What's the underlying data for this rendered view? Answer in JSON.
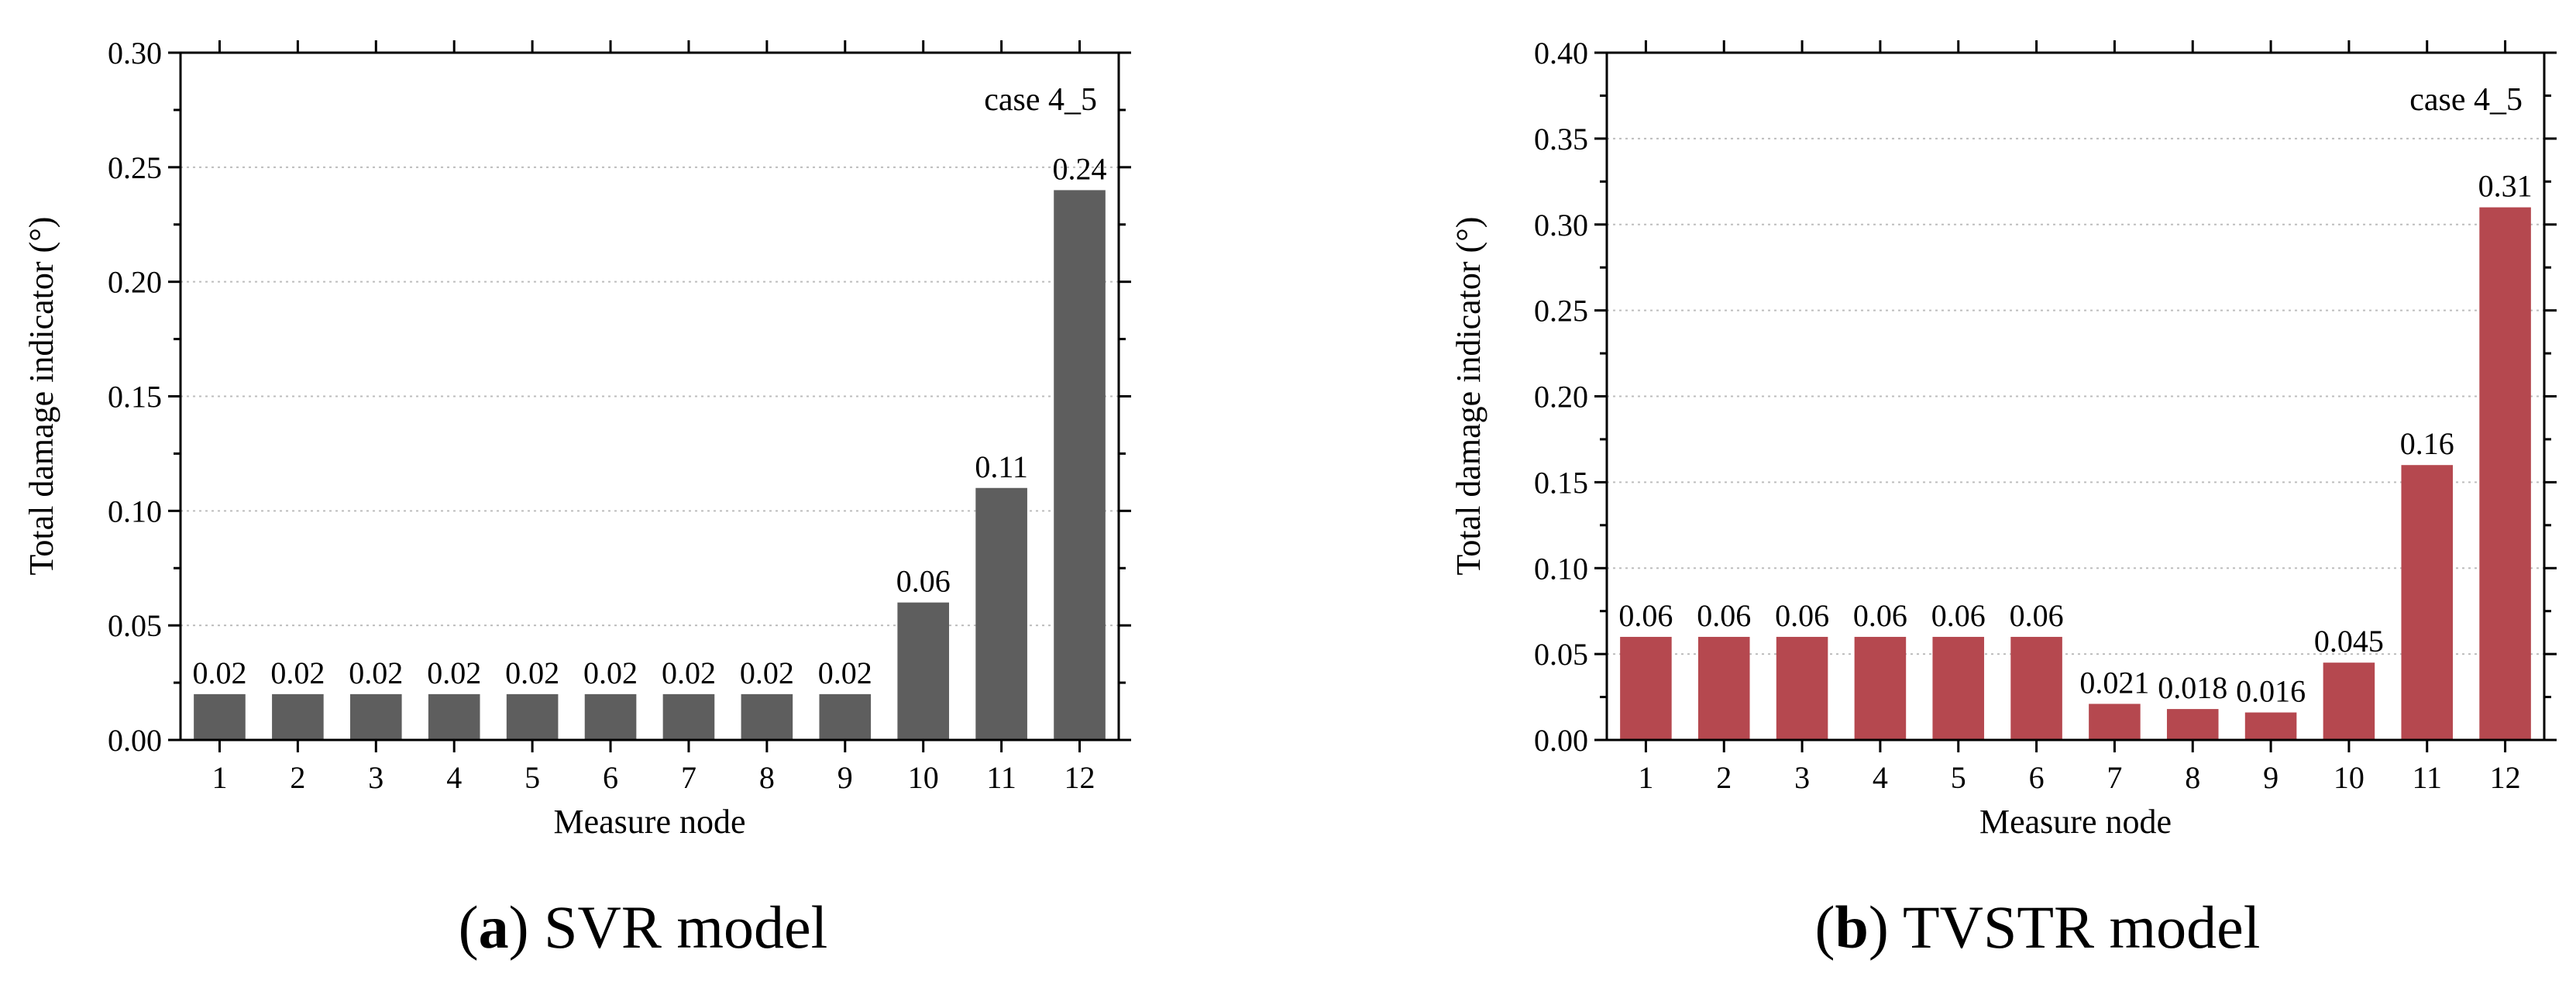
{
  "colors": {
    "svr_bar": "#5e5e5e",
    "tvstr_bar": "#b5484f",
    "axis": "#000000",
    "grid": "#bdbdbd"
  },
  "chart_data": [
    {
      "type": "bar",
      "panel": "a",
      "caption": {
        "letter": "a",
        "text": "SVR model"
      },
      "annotation": "case 4_5",
      "xlabel": "Measure node",
      "ylabel": "Total damage indicator (°)",
      "categories": [
        "1",
        "2",
        "3",
        "4",
        "5",
        "6",
        "7",
        "8",
        "9",
        "10",
        "11",
        "12"
      ],
      "values": [
        0.02,
        0.02,
        0.02,
        0.02,
        0.02,
        0.02,
        0.02,
        0.02,
        0.02,
        0.06,
        0.11,
        0.24
      ],
      "data_labels": [
        "0.02",
        "0.02",
        "0.02",
        "0.02",
        "0.02",
        "0.02",
        "0.02",
        "0.02",
        "0.02",
        "0.06",
        "0.11",
        "0.24"
      ],
      "ylim": [
        0,
        0.3
      ],
      "yticks": [
        0,
        0.05,
        0.1,
        0.15,
        0.2,
        0.25,
        0.3
      ],
      "ytick_labels": [
        "0.00",
        "0.05",
        "0.10",
        "0.15",
        "0.20",
        "0.25",
        "0.30"
      ],
      "grid": true
    },
    {
      "type": "bar",
      "panel": "b",
      "caption": {
        "letter": "b",
        "text": "TVSTR model"
      },
      "annotation": "case 4_5",
      "xlabel": "Measure node",
      "ylabel": "Total damage indicator (°)",
      "categories": [
        "1",
        "2",
        "3",
        "4",
        "5",
        "6",
        "7",
        "8",
        "9",
        "10",
        "11",
        "12"
      ],
      "values": [
        0.06,
        0.06,
        0.06,
        0.06,
        0.06,
        0.06,
        0.021,
        0.018,
        0.016,
        0.045,
        0.16,
        0.31
      ],
      "data_labels": [
        "0.06",
        "0.06",
        "0.06",
        "0.06",
        "0.06",
        "0.06",
        "0.021",
        "0.018",
        "0.016",
        "0.045",
        "0.16",
        "0.31"
      ],
      "ylim": [
        0,
        0.4
      ],
      "yticks": [
        0,
        0.05,
        0.1,
        0.15,
        0.2,
        0.25,
        0.3,
        0.35,
        0.4
      ],
      "ytick_labels": [
        "0.00",
        "0.05",
        "0.10",
        "0.15",
        "0.20",
        "0.25",
        "0.30",
        "0.35",
        "0.40"
      ],
      "grid": true
    }
  ]
}
